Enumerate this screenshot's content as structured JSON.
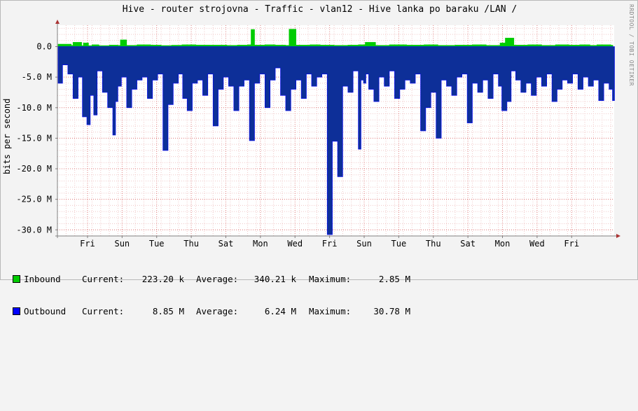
{
  "title": "Hive - router strojovna - Traffic - vlan12 - Hive lanka po baraku /LAN /",
  "watermark": "RRDTOOL / TOBI OETIKER",
  "chart_data": {
    "type": "area",
    "ylabel": "bits per second",
    "ylim": [
      -31000000,
      3500000
    ],
    "y_ticks": [
      {
        "value": 0,
        "label": "0.0"
      },
      {
        "value": -5000000,
        "label": "-5.0 M"
      },
      {
        "value": -10000000,
        "label": "-10.0 M"
      },
      {
        "value": -15000000,
        "label": "-15.0 M"
      },
      {
        "value": -20000000,
        "label": "-20.0 M"
      },
      {
        "value": -25000000,
        "label": "-25.0 M"
      },
      {
        "value": -30000000,
        "label": "-30.0 M"
      }
    ],
    "x_range": [
      0,
      16.1
    ],
    "x_ticks": [
      {
        "value": 0.87,
        "label": "Fri"
      },
      {
        "value": 1.87,
        "label": "Sun"
      },
      {
        "value": 2.87,
        "label": "Tue"
      },
      {
        "value": 3.87,
        "label": "Thu"
      },
      {
        "value": 4.87,
        "label": "Sat"
      },
      {
        "value": 5.87,
        "label": "Mon"
      },
      {
        "value": 6.87,
        "label": "Wed"
      },
      {
        "value": 7.87,
        "label": "Fri"
      },
      {
        "value": 8.87,
        "label": "Sun"
      },
      {
        "value": 9.87,
        "label": "Tue"
      },
      {
        "value": 10.87,
        "label": "Thu"
      },
      {
        "value": 11.87,
        "label": "Sat"
      },
      {
        "value": 12.87,
        "label": "Mon"
      },
      {
        "value": 13.87,
        "label": "Wed"
      },
      {
        "value": 14.87,
        "label": "Fri"
      }
    ],
    "series": [
      {
        "name": "Inbound",
        "color": "#00cc00",
        "x": [
          0.02,
          0.4,
          0.45,
          0.7,
          0.75,
          0.9,
          1.0,
          1.2,
          1.5,
          1.75,
          1.82,
          2.0,
          2.3,
          2.7,
          3.0,
          3.3,
          3.6,
          4.0,
          4.4,
          4.9,
          5.2,
          5.5,
          5.6,
          5.7,
          6.0,
          6.3,
          6.6,
          6.7,
          6.9,
          7.3,
          7.6,
          8.0,
          8.4,
          8.7,
          8.9,
          9.2,
          9.6,
          10.1,
          10.6,
          11.0,
          11.5,
          12.0,
          12.4,
          12.8,
          12.95,
          13.2,
          13.6,
          14.0,
          14.4,
          14.8,
          15.1,
          15.4,
          15.6,
          16.0
        ],
        "values": [
          400000,
          200000,
          700000,
          150000,
          600000,
          150000,
          300000,
          150000,
          250000,
          200000,
          1100000,
          200000,
          300000,
          250000,
          180000,
          220000,
          300000,
          260000,
          250000,
          200000,
          250000,
          300000,
          2800000,
          250000,
          300000,
          250000,
          200000,
          2850000,
          250000,
          300000,
          250000,
          200000,
          250000,
          300000,
          700000,
          200000,
          300000,
          250000,
          300000,
          200000,
          250000,
          300000,
          200000,
          600000,
          1400000,
          250000,
          300000,
          200000,
          300000,
          250000,
          300000,
          200000,
          300000,
          223200
        ]
      },
      {
        "name": "Outbound",
        "color": "#0000ff",
        "x": [
          0.02,
          0.15,
          0.3,
          0.45,
          0.6,
          0.72,
          0.85,
          0.95,
          1.05,
          1.15,
          1.3,
          1.45,
          1.6,
          1.68,
          1.75,
          1.85,
          2.0,
          2.15,
          2.3,
          2.45,
          2.6,
          2.75,
          2.9,
          3.05,
          3.2,
          3.35,
          3.5,
          3.62,
          3.75,
          3.9,
          4.05,
          4.2,
          4.35,
          4.5,
          4.65,
          4.8,
          4.95,
          5.1,
          5.25,
          5.4,
          5.55,
          5.7,
          5.85,
          6.0,
          6.15,
          6.3,
          6.45,
          6.6,
          6.75,
          6.9,
          7.05,
          7.2,
          7.35,
          7.5,
          7.65,
          7.8,
          7.95,
          8.1,
          8.25,
          8.4,
          8.55,
          8.7,
          8.78,
          8.85,
          8.92,
          9.0,
          9.15,
          9.3,
          9.45,
          9.6,
          9.75,
          9.9,
          10.05,
          10.2,
          10.35,
          10.5,
          10.65,
          10.8,
          10.95,
          11.1,
          11.25,
          11.4,
          11.55,
          11.7,
          11.85,
          12.0,
          12.15,
          12.3,
          12.45,
          12.6,
          12.75,
          12.85,
          13.0,
          13.12,
          13.25,
          13.4,
          13.55,
          13.7,
          13.85,
          14.0,
          14.15,
          14.3,
          14.45,
          14.6,
          14.75,
          14.9,
          15.05,
          15.2,
          15.35,
          15.5,
          15.65,
          15.8,
          15.95,
          16.05
        ],
        "values": [
          -6000000,
          -3000000,
          -4500000,
          -8500000,
          -5000000,
          -11500000,
          -12800000,
          -8000000,
          -11200000,
          -4000000,
          -7500000,
          -10000000,
          -14500000,
          -9000000,
          -6500000,
          -5000000,
          -10000000,
          -7000000,
          -5500000,
          -5000000,
          -8500000,
          -5500000,
          -4500000,
          -17000000,
          -9500000,
          -6000000,
          -4500000,
          -8500000,
          -10500000,
          -6000000,
          -5500000,
          -8000000,
          -4500000,
          -13000000,
          -7000000,
          -5000000,
          -6500000,
          -10500000,
          -6500000,
          -5500000,
          -15400000,
          -6000000,
          -4500000,
          -10000000,
          -5500000,
          -3500000,
          -8000000,
          -10500000,
          -7000000,
          -5500000,
          -8500000,
          -4500000,
          -6500000,
          -5000000,
          -4500000,
          -30780000,
          -15500000,
          -21300000,
          -6500000,
          -7500000,
          -4000000,
          -16800000,
          -5500000,
          -6000000,
          -4500000,
          -7000000,
          -9000000,
          -5000000,
          -6500000,
          -4000000,
          -8500000,
          -7000000,
          -5500000,
          -6000000,
          -4500000,
          -13800000,
          -10000000,
          -7500000,
          -15000000,
          -5500000,
          -6500000,
          -8000000,
          -5000000,
          -4500000,
          -12500000,
          -6000000,
          -7500000,
          -5500000,
          -8500000,
          -4500000,
          -6500000,
          -10500000,
          -9000000,
          -4000000,
          -5500000,
          -7500000,
          -6000000,
          -8000000,
          -5000000,
          -6500000,
          -4500000,
          -9000000,
          -7000000,
          -5500000,
          -6000000,
          -4500000,
          -7000000,
          -5000000,
          -6500000,
          -5500000,
          -8850000,
          -6000000,
          -7000000,
          -8850000
        ]
      }
    ]
  },
  "legend": [
    {
      "name": "Inbound",
      "color": "#00cc00",
      "current_label": "Current:",
      "current": "223.20 k",
      "average_label": "Average:",
      "average": "340.21 k",
      "maximum_label": "Maximum:",
      "maximum": "2.85 M"
    },
    {
      "name": "Outbound",
      "color": "#0000ff",
      "current_label": "Current:",
      "current": "8.85 M",
      "average_label": "Average:",
      "average": "6.24 M",
      "maximum_label": "Maximum:",
      "maximum": "30.78 M"
    }
  ]
}
